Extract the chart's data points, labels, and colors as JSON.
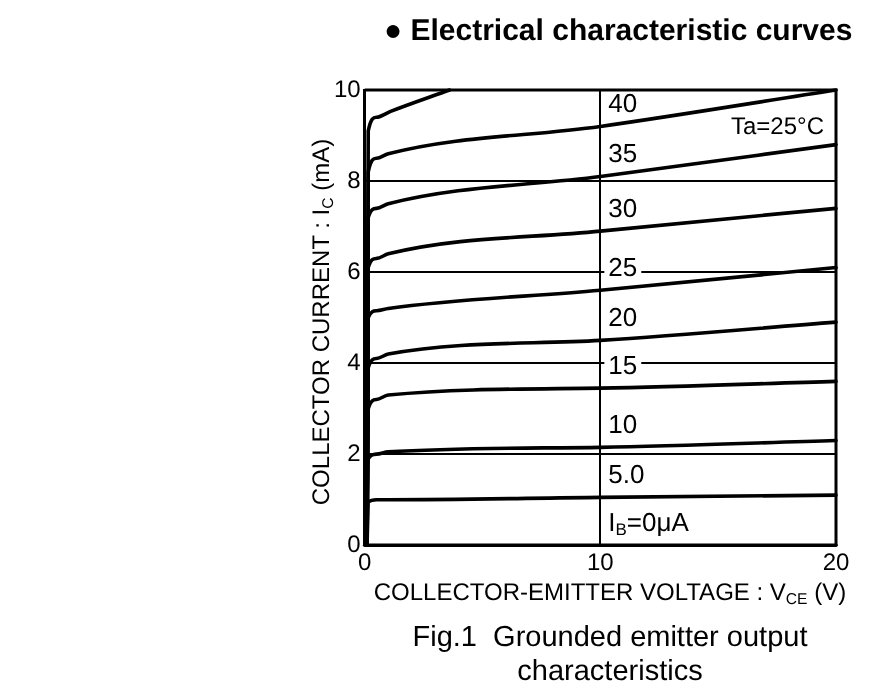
{
  "chart_data": {
    "type": "line",
    "title": "● Electrical characteristic curves",
    "xlabel": "COLLECTOR-EMITTER  VOLTAGE : V$_{CE}$ (V)",
    "ylabel": "COLLECTOR  CURRENT : I$_{C}$ (mA)",
    "annotations": [
      "Ta=25°C",
      "Fig.1  Grounded emitter output characteristics"
    ],
    "xlim": [
      0,
      20
    ],
    "xticks": [
      0,
      10,
      20
    ],
    "ylim": [
      0,
      10
    ],
    "yticks": [
      0,
      2,
      4,
      6,
      8,
      10
    ],
    "grid": true,
    "legend": false,
    "marker": "none",
    "line_style": "solid",
    "series": [
      {
        "color": "#000000",
        "x": [
          0.1,
          0.15,
          0.5,
          1.1,
          3.6
        ],
        "values": [
          0,
          9.1,
          9.4,
          9.53,
          10
        ]
      },
      {
        "name": "40",
        "color": "#000000",
        "x": [
          0.1,
          0.15,
          0.5,
          1,
          10,
          20
        ],
        "values": [
          0,
          8.2,
          8.5,
          8.6,
          9.2,
          10
        ]
      },
      {
        "name": "35",
        "color": "#000000",
        "x": [
          0.1,
          0.15,
          0.5,
          1,
          10,
          20
        ],
        "values": [
          0,
          7.2,
          7.4,
          7.5,
          8.1,
          8.8
        ]
      },
      {
        "name": "30",
        "color": "#000000",
        "x": [
          0.1,
          0.15,
          0.5,
          1,
          10,
          20
        ],
        "values": [
          0,
          6.1,
          6.3,
          6.4,
          6.9,
          7.4
        ]
      },
      {
        "name": "25",
        "color": "#000000",
        "x": [
          0.1,
          0.15,
          0.5,
          1,
          10,
          20
        ],
        "values": [
          0,
          5,
          5.15,
          5.2,
          5.6,
          6.1
        ]
      },
      {
        "name": "20",
        "color": "#000000",
        "x": [
          0.1,
          0.15,
          0.5,
          1,
          10,
          20
        ],
        "values": [
          0,
          3.9,
          4.1,
          4.2,
          4.5,
          4.9
        ]
      },
      {
        "name": "15",
        "color": "#000000",
        "x": [
          0.1,
          0.15,
          0.5,
          1,
          10,
          20
        ],
        "values": [
          0,
          3,
          3.2,
          3.3,
          3.45,
          3.6
        ]
      },
      {
        "name": "10",
        "color": "#000000",
        "x": [
          0.1,
          0.15,
          0.5,
          1,
          10,
          20
        ],
        "values": [
          0,
          1.9,
          2,
          2.05,
          2.15,
          2.3
        ]
      },
      {
        "name": "5.0",
        "color": "#000000",
        "x": [
          0.1,
          0.15,
          0.5,
          1,
          10,
          20
        ],
        "values": [
          0,
          0.95,
          1,
          1,
          1.05,
          1.1
        ]
      },
      {
        "name": "I$_{B}$=0μA",
        "color": "#000000",
        "x": [
          0,
          20
        ],
        "values": [
          0,
          0
        ]
      }
    ]
  }
}
